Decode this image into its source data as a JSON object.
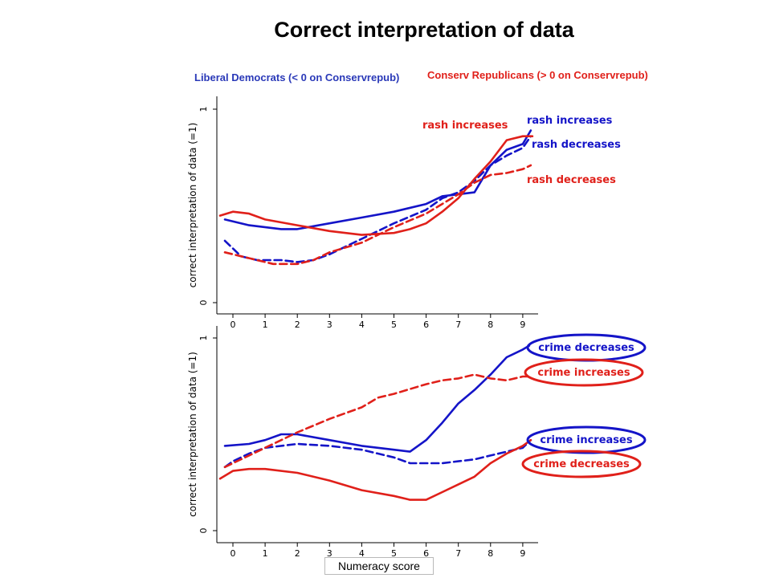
{
  "title": "Correct interpretation of data",
  "subtitle_left": "Liberal Democrats (< 0 on Conservrepub)",
  "subtitle_right": "Conserv Republicans (> 0 on Conservrepub)",
  "xlabel": "Numeracy score",
  "colors": {
    "liberal": "#1414c8",
    "conservative": "#e0201a",
    "liberal_text": "#2a39b8"
  },
  "chart_data": [
    {
      "type": "line",
      "ylabel": "correct interpretation of data (=1)",
      "xlim": [
        -0.4,
        9.4
      ],
      "ylim": [
        0,
        1
      ],
      "xticks": [
        "0",
        "1",
        "2",
        "3",
        "4",
        "5",
        "6",
        "7",
        "8",
        "9"
      ],
      "yticks": [
        "0",
        "1"
      ],
      "series": [
        {
          "name": "rash increases",
          "color": "#1414c8",
          "dash": false,
          "x": [
            -0.25,
            0.5,
            1.5,
            2,
            3,
            4,
            5,
            6,
            6.5,
            7.5,
            8,
            8.5,
            9,
            9.25
          ],
          "y": [
            0.43,
            0.4,
            0.38,
            0.38,
            0.41,
            0.44,
            0.47,
            0.51,
            0.55,
            0.57,
            0.71,
            0.79,
            0.82,
            0.89
          ]
        },
        {
          "name": "rash decreases",
          "color": "#1414c8",
          "dash": true,
          "x": [
            -0.25,
            0.25,
            0.75,
            1.5,
            2,
            2.5,
            3,
            4,
            5,
            6,
            6.5,
            7,
            7.5,
            8,
            8.5,
            9,
            9.25
          ],
          "y": [
            0.32,
            0.24,
            0.22,
            0.22,
            0.21,
            0.22,
            0.25,
            0.33,
            0.41,
            0.48,
            0.54,
            0.57,
            0.63,
            0.71,
            0.76,
            0.8,
            0.86
          ]
        },
        {
          "name": "rash increases",
          "color": "#e0201a",
          "dash": false,
          "x": [
            -0.4,
            0,
            0.5,
            1,
            2,
            3,
            4,
            5,
            5.5,
            6,
            6.5,
            7,
            7.5,
            8,
            8.5,
            9,
            9.3
          ],
          "y": [
            0.45,
            0.47,
            0.46,
            0.43,
            0.4,
            0.37,
            0.35,
            0.36,
            0.38,
            0.41,
            0.47,
            0.54,
            0.64,
            0.73,
            0.84,
            0.86,
            0.86
          ]
        },
        {
          "name": "rash decreases",
          "color": "#e0201a",
          "dash": true,
          "x": [
            -0.25,
            0.25,
            0.75,
            1.25,
            2,
            2.5,
            3,
            4,
            5,
            6,
            7,
            7.5,
            8,
            8.5,
            9,
            9.25
          ],
          "y": [
            0.26,
            0.24,
            0.22,
            0.2,
            0.2,
            0.22,
            0.26,
            0.31,
            0.39,
            0.46,
            0.56,
            0.62,
            0.66,
            0.67,
            0.69,
            0.71
          ]
        }
      ],
      "annotations": [
        {
          "text": "rash increases",
          "color": "#1414c8",
          "box": false
        },
        {
          "text": "rash increases",
          "color": "#e0201a",
          "box": false
        },
        {
          "text": "rash decreases",
          "color": "#1414c8",
          "box": false
        },
        {
          "text": "rash decreases",
          "color": "#e0201a",
          "box": false
        }
      ]
    },
    {
      "type": "line",
      "ylabel": "correct interpretation of data (=1)",
      "xlim": [
        -0.4,
        9.4
      ],
      "ylim": [
        0,
        1
      ],
      "xticks": [
        "0",
        "1",
        "2",
        "3",
        "4",
        "5",
        "6",
        "7",
        "8",
        "9"
      ],
      "yticks": [
        "0",
        "1"
      ],
      "series": [
        {
          "name": "crime decreases",
          "color": "#1414c8",
          "dash": false,
          "x": [
            -0.25,
            0.5,
            1,
            1.5,
            2,
            3,
            4,
            5,
            5.5,
            6,
            6.5,
            7,
            7.5,
            8,
            8.5,
            9,
            9.2
          ],
          "y": [
            0.44,
            0.45,
            0.47,
            0.5,
            0.5,
            0.47,
            0.44,
            0.42,
            0.41,
            0.47,
            0.56,
            0.66,
            0.73,
            0.81,
            0.9,
            0.94,
            0.96
          ]
        },
        {
          "name": "crime increases",
          "color": "#1414c8",
          "dash": true,
          "x": [
            -0.25,
            0,
            0.5,
            1,
            2,
            3,
            4,
            5,
            5.5,
            6,
            6.5,
            7,
            7.5,
            8,
            8.5,
            9,
            9.25
          ],
          "y": [
            0.33,
            0.36,
            0.4,
            0.43,
            0.45,
            0.44,
            0.42,
            0.38,
            0.35,
            0.35,
            0.35,
            0.36,
            0.37,
            0.39,
            0.41,
            0.43,
            0.47
          ]
        },
        {
          "name": "crime increases",
          "color": "#e0201a",
          "dash": true,
          "x": [
            -0.25,
            0,
            0.5,
            1,
            2,
            3,
            4,
            4.5,
            5,
            6,
            6.5,
            7,
            7.5,
            8,
            8.5,
            9,
            9.25
          ],
          "y": [
            0.33,
            0.35,
            0.39,
            0.43,
            0.51,
            0.58,
            0.64,
            0.69,
            0.71,
            0.76,
            0.78,
            0.79,
            0.81,
            0.79,
            0.78,
            0.8,
            0.8
          ]
        },
        {
          "name": "crime decreases",
          "color": "#e0201a",
          "dash": false,
          "x": [
            -0.4,
            0,
            0.5,
            1,
            2,
            3,
            4,
            5,
            5.5,
            6,
            6.5,
            7,
            7.5,
            8,
            8.5,
            9,
            9.25
          ],
          "y": [
            0.27,
            0.31,
            0.32,
            0.32,
            0.3,
            0.26,
            0.21,
            0.18,
            0.16,
            0.16,
            0.2,
            0.24,
            0.28,
            0.35,
            0.4,
            0.44,
            0.47
          ]
        }
      ],
      "annotations": [
        {
          "text": "crime decreases",
          "color": "#1414c8",
          "box": true
        },
        {
          "text": "crime increases",
          "color": "#e0201a",
          "box": true
        },
        {
          "text": "crime increases",
          "color": "#1414c8",
          "box": true
        },
        {
          "text": "crime decreases",
          "color": "#e0201a",
          "box": true
        }
      ]
    }
  ]
}
